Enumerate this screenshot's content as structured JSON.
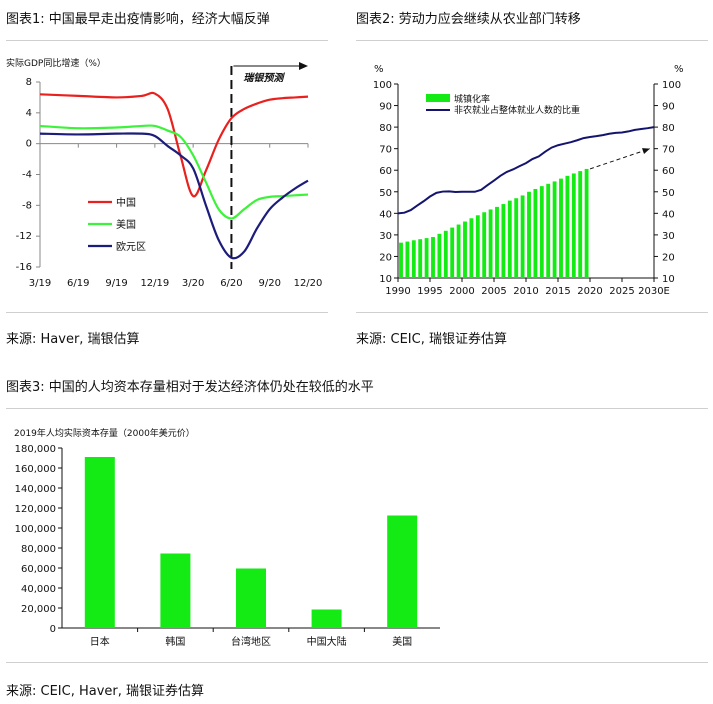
{
  "figures": {
    "fig1_title": "图表1: 中国最早走出疫情影响，经济大幅反弹",
    "fig1_source": "来源: Haver, 瑞银估算",
    "fig2_title": "图表2: 劳动力应会继续从农业部门转移",
    "fig2_source": "来源: CEIC, 瑞银证券估算",
    "fig3_title": "图表3: 中国的人均资本存量相对于发达经济体仍处在较低的水平",
    "fig3_source": "来源: CEIC, Haver, 瑞银证券估算"
  },
  "colors": {
    "china": "#e8211e",
    "usa": "#3df23a",
    "euro": "#1c1c7a",
    "bar_green": "#14ea14",
    "line_navy": "#14146e"
  },
  "chart_data": [
    {
      "type": "line",
      "title": "",
      "ylabel": "实际GDP同比增速（%）",
      "annotation": "瑞银预测",
      "forecast_start": "6/20",
      "xlabels": [
        "3/19",
        "6/19",
        "9/19",
        "12/19",
        "3/20",
        "6/20",
        "9/20",
        "12/20"
      ],
      "ylim": [
        -16,
        8
      ],
      "yticks": [
        8,
        4,
        0,
        -4,
        -8,
        -12,
        -16
      ],
      "legend_position": "center-left",
      "series": [
        {
          "name": "中国",
          "color_key": "china",
          "x": [
            "3/19",
            "6/19",
            "9/19",
            "11/19",
            "12/19",
            "1/20",
            "2/20",
            "3/20",
            "4/20",
            "5/20",
            "6/20",
            "7/20",
            "8/20",
            "9/20",
            "10/20",
            "11/20",
            "12/20"
          ],
          "values": [
            6.4,
            6.2,
            6.0,
            6.2,
            6.5,
            4.5,
            -1.5,
            -6.8,
            -3.5,
            0.5,
            3.3,
            4.5,
            5.2,
            5.7,
            5.9,
            6.0,
            6.1
          ]
        },
        {
          "name": "美国",
          "color_key": "usa",
          "x": [
            "3/19",
            "6/19",
            "9/19",
            "11/19",
            "12/19",
            "1/20",
            "2/20",
            "3/20",
            "4/20",
            "5/20",
            "6/20",
            "7/20",
            "8/20",
            "9/20",
            "10/20",
            "11/20",
            "12/20"
          ],
          "values": [
            2.3,
            2.0,
            2.1,
            2.3,
            2.3,
            1.7,
            0.9,
            -1.5,
            -5.0,
            -8.5,
            -9.7,
            -8.5,
            -7.3,
            -6.9,
            -6.8,
            -6.7,
            -6.6
          ]
        },
        {
          "name": "欧元区",
          "color_key": "euro",
          "x": [
            "3/19",
            "6/19",
            "9/19",
            "11/19",
            "12/19",
            "1/20",
            "2/20",
            "3/20",
            "4/20",
            "5/20",
            "6/20",
            "7/20",
            "8/20",
            "9/20",
            "10/20",
            "11/20",
            "12/20"
          ],
          "values": [
            1.3,
            1.2,
            1.3,
            1.3,
            1.0,
            -0.3,
            -1.5,
            -3.2,
            -8.0,
            -12.5,
            -14.8,
            -14.0,
            -11.0,
            -8.5,
            -7.0,
            -5.8,
            -4.8
          ]
        }
      ]
    },
    {
      "type": "bar+line",
      "title": "",
      "ylabel_left": "%",
      "ylabel_right": "%",
      "ylim": [
        10,
        100
      ],
      "yticks": [
        100,
        90,
        80,
        70,
        60,
        50,
        40,
        30,
        20,
        10
      ],
      "xlabels": [
        "1990",
        "1995",
        "2000",
        "2005",
        "2010",
        "2015",
        "2020",
        "2025",
        "2030E"
      ],
      "xlim": [
        1990,
        2030
      ],
      "legend_position": "top-center",
      "bar_series": {
        "name": "城镇化率",
        "color_key": "bar_green",
        "years": [
          1990,
          1991,
          1992,
          1993,
          1994,
          1995,
          1996,
          1997,
          1998,
          1999,
          2000,
          2001,
          2002,
          2003,
          2004,
          2005,
          2006,
          2007,
          2008,
          2009,
          2010,
          2011,
          2012,
          2013,
          2014,
          2015,
          2016,
          2017,
          2018,
          2019
        ],
        "values": [
          26.4,
          26.9,
          27.5,
          28.0,
          28.5,
          29.0,
          30.5,
          31.9,
          33.4,
          34.8,
          36.2,
          37.7,
          39.1,
          40.5,
          41.8,
          43.0,
          44.3,
          45.9,
          47.0,
          48.3,
          50.0,
          51.3,
          52.6,
          53.7,
          54.8,
          56.1,
          57.4,
          58.5,
          59.6,
          60.6
        ]
      },
      "line_series": {
        "name": "非农就业占整体就业人数的比重",
        "color_key": "line_navy",
        "years": [
          1990,
          1991,
          1992,
          1993,
          1994,
          1995,
          1996,
          1997,
          1998,
          1999,
          2000,
          2001,
          2002,
          2003,
          2004,
          2005,
          2006,
          2007,
          2008,
          2009,
          2010,
          2011,
          2012,
          2013,
          2014,
          2015,
          2016,
          2017,
          2018,
          2019,
          2020,
          2021,
          2022,
          2023,
          2024,
          2025,
          2026,
          2027,
          2028,
          2029,
          2030
        ],
        "values": [
          40.0,
          40.3,
          41.5,
          43.6,
          45.6,
          47.8,
          49.5,
          50.1,
          50.2,
          49.9,
          50.0,
          50.0,
          50.0,
          50.9,
          53.1,
          55.2,
          57.4,
          59.2,
          60.4,
          61.9,
          63.3,
          65.2,
          66.4,
          68.6,
          70.5,
          71.6,
          72.3,
          73.0,
          73.9,
          74.9,
          75.4,
          75.8,
          76.3,
          76.9,
          77.3,
          77.5,
          78.0,
          78.7,
          79.1,
          79.5,
          80.0
        ]
      },
      "projection_arrow": {
        "from": [
          2020,
          60.6
        ],
        "to": [
          2030,
          70
        ]
      }
    },
    {
      "type": "bar",
      "title": "2019年人均实际资本存量（2000年美元价）",
      "categories": [
        "日本",
        "韩国",
        "台湾地区",
        "中国大陆",
        "美国"
      ],
      "values": [
        171000,
        74500,
        59500,
        18500,
        112500
      ],
      "ylim": [
        0,
        180000
      ],
      "yticks": [
        0,
        20000,
        40000,
        60000,
        80000,
        100000,
        120000,
        140000,
        160000,
        180000
      ],
      "ytick_labels": [
        "0",
        "20,000",
        "40,000",
        "60,000",
        "80,000",
        "100,000",
        "120,000",
        "140,000",
        "160,000",
        "180,000"
      ],
      "color_key": "bar_green"
    }
  ]
}
